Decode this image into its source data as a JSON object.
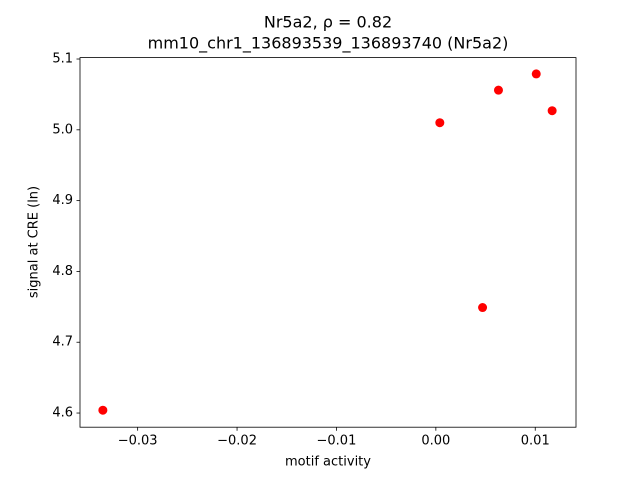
{
  "chart_data": {
    "type": "scatter",
    "title": "Nr5a2, ρ = 0.82",
    "subtitle": "mm10_chr1_136893539_136893740 (Nr5a2)",
    "xlabel": "motif activity",
    "ylabel": "signal at CRE (ln)",
    "color": "#ff0000",
    "x": [
      -0.0335,
      0.0004,
      0.0047,
      0.0063,
      0.0101,
      0.0117
    ],
    "y": [
      4.604,
      5.01,
      4.749,
      5.056,
      5.079,
      5.027
    ],
    "xlim": [
      -0.0358,
      0.0141
    ],
    "ylim": [
      4.58,
      5.102
    ],
    "xticks": [
      {
        "value": -0.03,
        "label": "−0.03"
      },
      {
        "value": -0.02,
        "label": "−0.02"
      },
      {
        "value": -0.01,
        "label": "−0.01"
      },
      {
        "value": 0,
        "label": "0.00"
      },
      0.01
    ],
    "yticks": [
      4.6,
      4.7,
      4.8,
      4.9,
      {
        "value": 5,
        "label": "5.0"
      },
      5.1
    ],
    "grid": false
  }
}
